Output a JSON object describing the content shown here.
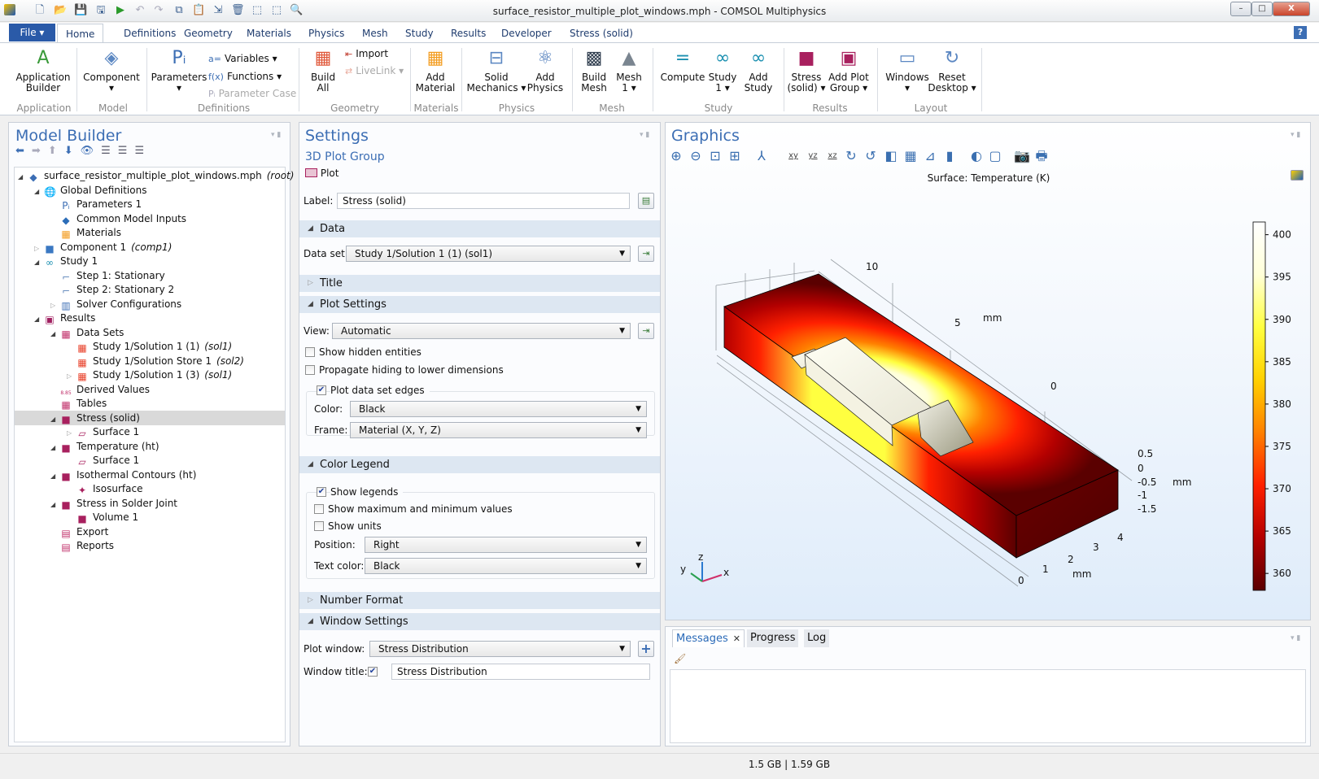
{
  "window": {
    "title": "surface_resistor_multiple_plot_windows.mph - COMSOL Multiphysics",
    "minimize": "–",
    "maximize": "□",
    "close": "X"
  },
  "quick_access": [
    "new-icon",
    "open-icon",
    "save-icon",
    "save-as-app-icon",
    "run-icon",
    "undo-icon",
    "redo-icon",
    "copy-icon",
    "paste-icon",
    "duplicate-icon",
    "delete-icon",
    "select-all-icon",
    "clear-selection-icon",
    "find-icon"
  ],
  "menu": {
    "file": "File ▾",
    "help": "?",
    "tabs": [
      "Home",
      "Definitions",
      "Geometry",
      "Materials",
      "Physics",
      "Mesh",
      "Study",
      "Results",
      "Developer",
      "Stress (solid)"
    ],
    "active_tab": "Home"
  },
  "ribbon": {
    "groups": [
      "Application",
      "Model",
      "Definitions",
      "Geometry",
      "Materials",
      "Physics",
      "Mesh",
      "Study",
      "Results",
      "Layout"
    ],
    "app_builder": "Application\nBuilder",
    "component": "Component\n▾",
    "parameters": "Parameters\n▾",
    "variables": "Variables ▾",
    "functions": "Functions ▾",
    "parameter_case": "Parameter Case",
    "build_all": "Build\nAll",
    "import": "Import",
    "livelink": "LiveLink ▾",
    "add_material": "Add\nMaterial",
    "solid_mechanics": "Solid\nMechanics ▾",
    "add_physics": "Add\nPhysics",
    "build_mesh": "Build\nMesh",
    "mesh1": "Mesh\n1 ▾",
    "compute": "Compute",
    "study1": "Study\n1 ▾",
    "add_study": "Add\nStudy",
    "stress_solid": "Stress\n(solid) ▾",
    "add_plot_group": "Add Plot\nGroup ▾",
    "windows": "Windows\n▾",
    "reset_desktop": "Reset\nDesktop ▾"
  },
  "model_builder": {
    "title": "Model Builder",
    "tree": [
      {
        "label": "surface_resistor_multiple_plot_windows.mph",
        "tag": "(root)",
        "level": 0,
        "state": "open",
        "icon": "root-icon",
        "color": "#3c6eb4"
      },
      {
        "label": "Global Definitions",
        "level": 1,
        "state": "open",
        "icon": "globe-icon",
        "color": "#5b87c2"
      },
      {
        "label": "Parameters 1",
        "level": 2,
        "icon": "parameters-icon",
        "color": "#3c6eb4"
      },
      {
        "label": "Common Model Inputs",
        "level": 2,
        "icon": "common-inputs-icon",
        "color": "#2c6db8"
      },
      {
        "label": "Materials",
        "level": 2,
        "icon": "materials-icon",
        "color": "#f39c1f"
      },
      {
        "label": "Component 1",
        "tag": "(comp1)",
        "level": 1,
        "state": "closed",
        "icon": "component-icon",
        "color": "#3a78c2"
      },
      {
        "label": "Study 1",
        "level": 1,
        "state": "open",
        "icon": "study-icon",
        "color": "#1a8fb0"
      },
      {
        "label": "Step 1: Stationary",
        "level": 2,
        "icon": "stationary-step-icon",
        "color": "#6a8fbf"
      },
      {
        "label": "Step 2: Stationary 2",
        "level": 2,
        "icon": "stationary-step-icon",
        "color": "#6a8fbf"
      },
      {
        "label": "Solver Configurations",
        "level": 2,
        "state": "closed",
        "icon": "solver-icon",
        "color": "#3c6eb4"
      },
      {
        "label": "Results",
        "level": 1,
        "state": "open",
        "icon": "results-icon",
        "color": "#a02060"
      },
      {
        "label": "Data Sets",
        "level": 2,
        "state": "open",
        "icon": "datasets-icon",
        "color": "#c0306a"
      },
      {
        "label": "Study 1/Solution 1 (1)",
        "tag": "(sol1)",
        "level": 3,
        "icon": "solution-icon",
        "color": "#e8402a"
      },
      {
        "label": "Study 1/Solution Store 1",
        "tag": "(sol2)",
        "level": 3,
        "icon": "solution-icon",
        "color": "#e8402a"
      },
      {
        "label": "Study 1/Solution 1 (3)",
        "tag": "(sol1)",
        "level": 3,
        "state": "closed",
        "icon": "solution-icon",
        "color": "#e8402a"
      },
      {
        "label": "Derived Values",
        "level": 2,
        "icon": "derived-values-icon",
        "color": "#c0306a"
      },
      {
        "label": "Tables",
        "level": 2,
        "icon": "table-icon",
        "color": "#c0306a"
      },
      {
        "label": "Stress (solid)",
        "level": 2,
        "state": "open",
        "icon": "plot-group-icon",
        "color": "#a8205e",
        "selected": true
      },
      {
        "label": "Surface 1",
        "level": 3,
        "state": "closed",
        "icon": "surface-plot-icon",
        "color": "#a8205e"
      },
      {
        "label": "Temperature (ht)",
        "level": 2,
        "state": "open",
        "icon": "plot-group-icon",
        "color": "#a8205e"
      },
      {
        "label": "Surface 1",
        "level": 3,
        "icon": "surface-plot-icon",
        "color": "#a8205e"
      },
      {
        "label": "Isothermal Contours (ht)",
        "level": 2,
        "state": "open",
        "icon": "plot-group-icon",
        "color": "#a8205e"
      },
      {
        "label": "Isosurface",
        "level": 3,
        "icon": "isosurface-icon",
        "color": "#a8205e"
      },
      {
        "label": "Stress in Solder Joint",
        "level": 2,
        "state": "open",
        "icon": "plot-group-icon",
        "color": "#a8205e"
      },
      {
        "label": "Volume 1",
        "level": 3,
        "icon": "volume-plot-icon",
        "color": "#a8205e"
      },
      {
        "label": "Export",
        "level": 2,
        "icon": "export-icon",
        "color": "#c0306a"
      },
      {
        "label": "Reports",
        "level": 2,
        "icon": "reports-icon",
        "color": "#c0306a"
      }
    ]
  },
  "settings": {
    "title": "Settings",
    "subtitle": "3D Plot Group",
    "plot_button": "Plot",
    "label_caption": "Label:",
    "label_value": "Stress (solid)",
    "sections": {
      "data": "Data",
      "title": "Title",
      "plot_settings": "Plot Settings",
      "color_legend": "Color Legend",
      "number_format": "Number Format",
      "window_settings": "Window Settings"
    },
    "data_set_caption": "Data set:",
    "data_set_value": "Study 1/Solution 1 (1) (sol1)",
    "view_caption": "View:",
    "view_value": "Automatic",
    "show_hidden": {
      "label": "Show hidden entities",
      "checked": false
    },
    "propagate_hiding": {
      "label": "Propagate hiding to lower dimensions",
      "checked": false
    },
    "plot_edges": {
      "label": "Plot data set edges",
      "checked": true
    },
    "color_caption": "Color:",
    "color_value": "Black",
    "frame_caption": "Frame:",
    "frame_value": "Material  (X, Y, Z)",
    "show_legends": {
      "label": "Show legends",
      "checked": true
    },
    "show_maxmin": {
      "label": "Show maximum and minimum values",
      "checked": false
    },
    "show_units": {
      "label": "Show units",
      "checked": false
    },
    "position_caption": "Position:",
    "position_value": "Right",
    "text_color_caption": "Text color:",
    "text_color_value": "Black",
    "plot_window_caption": "Plot window:",
    "plot_window_value": "Stress Distribution",
    "window_title_caption": "Window title:",
    "window_title_checked": true,
    "window_title_value": "Stress Distribution"
  },
  "graphics": {
    "title": "Graphics",
    "toolbar": [
      "zoom-in-icon",
      "zoom-out-icon",
      "zoom-box-icon",
      "zoom-extents-icon",
      "axis-orientation-icon",
      "view-xy-icon",
      "view-yz-icon",
      "view-xz-icon",
      "rotate-icon",
      "reset-view-icon",
      "go-to-view-icon",
      "grid-icon",
      "axis-icon",
      "legend-icon",
      "transparency-icon",
      "wireframe-icon",
      "image-snapshot-icon",
      "print-icon"
    ],
    "plot_title": "Surface: Temperature (K)",
    "legend_ticks": [
      "400",
      "395",
      "390",
      "385",
      "380",
      "375",
      "370",
      "365",
      "360"
    ],
    "legend_range": [
      358,
      401.5
    ],
    "colormap": [
      "#5a0000",
      "#b30000",
      "#ff2000",
      "#ff8000",
      "#ffd000",
      "#ffff40",
      "#ffffd8",
      "#ffffff"
    ],
    "y_axis_labels": [
      "10",
      "5",
      "0"
    ],
    "z_axis_labels": [
      "0.5",
      "0",
      "-0.5",
      "-1",
      "-1.5"
    ],
    "x_axis_labels": [
      "4",
      "3",
      "2",
      "1",
      "0"
    ],
    "unit": "mm",
    "triad": {
      "x": "x",
      "y": "y",
      "z": "z"
    }
  },
  "messages": {
    "tabs": [
      "Messages",
      "Progress",
      "Log"
    ],
    "active_tab": "Messages",
    "close": "✕"
  },
  "status": {
    "memory": "1.5 GB | 1.59 GB"
  }
}
